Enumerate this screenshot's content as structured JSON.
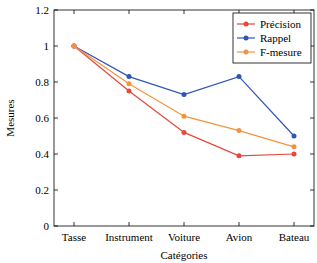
{
  "chart_data": {
    "type": "line",
    "x_label": "Catégories",
    "y_label": "Mesures",
    "categories": [
      "Tasse",
      "Instrument",
      "Voiture",
      "Avion",
      "Bateau"
    ],
    "series": [
      {
        "name": "Précision",
        "color": "#e8473b",
        "marker": "circle",
        "values": [
          1.0,
          0.75,
          0.52,
          0.39,
          0.4
        ]
      },
      {
        "name": "Rappel",
        "color": "#2f55b8",
        "marker": "circle",
        "values": [
          1.0,
          0.83,
          0.73,
          0.83,
          0.5
        ]
      },
      {
        "name": "F-mesure",
        "color": "#f5923e",
        "marker": "circle",
        "values": [
          1.0,
          0.79,
          0.61,
          0.53,
          0.44
        ]
      }
    ],
    "ylim": [
      0,
      1.2
    ],
    "yticks": [
      0,
      0.2,
      0.4,
      0.6,
      0.8,
      1,
      1.2
    ],
    "grid": false,
    "legend": "upper right"
  }
}
